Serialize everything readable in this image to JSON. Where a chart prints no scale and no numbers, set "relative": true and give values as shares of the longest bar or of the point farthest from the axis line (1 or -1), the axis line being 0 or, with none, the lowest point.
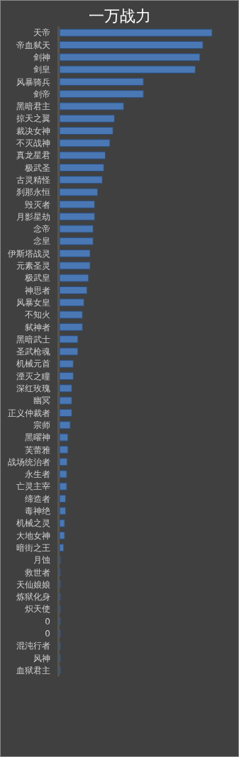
{
  "chart_data": {
    "type": "bar",
    "orientation": "horizontal",
    "relative": true,
    "title": "一万战力",
    "color": "#4a78b4",
    "categories": [
      "天帝",
      "帝血弑天",
      "剑神",
      "剑皇",
      "风暴骑兵",
      "剑帝",
      "黑暗君主",
      "掠天之翼",
      "裁决女神",
      "不灭战神",
      "真龙星君",
      "极武圣",
      "古灵精怪",
      "刹那永恒",
      "毁灭者",
      "月影星劫",
      "念帝",
      "念皇",
      "伊斯塔战灵",
      "元素圣灵",
      "极武皇",
      "神思者",
      "风暴女皇",
      "不知火",
      "弑神者",
      "黑暗武士",
      "圣武枪魂",
      "机械元首",
      "湮灭之瞳",
      "深红玫瑰",
      "幽冥",
      "正义仲裁者",
      "宗师",
      "黑曜神",
      "芙蕾雅",
      "战场统治者",
      "永生者",
      "亡灵主宰",
      "缔造者",
      "毒神绝",
      "机械之灵",
      "大地女神",
      "暗街之王",
      "月蚀",
      "救世者",
      "天仙娘娘",
      "炼狱化身",
      "炽天使",
      "0",
      "0",
      "混沌行者",
      "风神",
      "血狱君主"
    ],
    "values": [
      1,
      0.94,
      0.92,
      0.89,
      0.55,
      0.55,
      0.42,
      0.36,
      0.35,
      0.33,
      0.3,
      0.29,
      0.28,
      0.25,
      0.23,
      0.23,
      0.22,
      0.22,
      0.2,
      0.2,
      0.19,
      0.18,
      0.16,
      0.15,
      0.15,
      0.12,
      0.12,
      0.09,
      0.09,
      0.08,
      0.08,
      0.08,
      0.07,
      0.055,
      0.055,
      0.05,
      0.047,
      0.047,
      0.04,
      0.04,
      0.033,
      0.033,
      0.027,
      0.005,
      0.005,
      0.005,
      0.005,
      0.005,
      0.005,
      0.005,
      0.005,
      0.005,
      0.005
    ],
    "grid": false,
    "legend": false
  }
}
